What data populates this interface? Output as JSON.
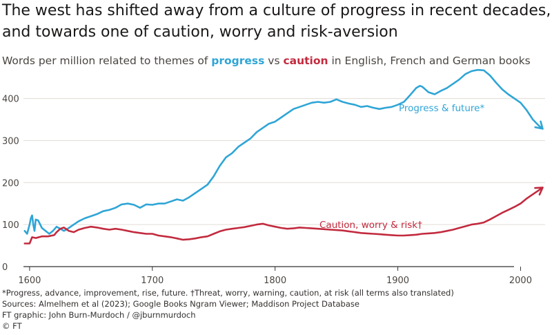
{
  "title_line1": "The west has shifted away from a culture of progress in recent decades,",
  "title_line2": "and towards one of caution, worry and risk-aversion",
  "subtitle": {
    "before": "Words per million related to themes of ",
    "progress_word": "progress",
    "middle": " vs ",
    "caution_word": "caution",
    "after": " in English, French and German books"
  },
  "footer": {
    "note": "*Progress, advance, improvement, rise, future. †Threat, worry, warning, caution, at risk (all terms also translated)",
    "sources": "Sources: Almelhem et al (2023); Google Books Ngram Viewer; Maddison Project Database",
    "credit": "FT graphic: John Burn-Murdoch / @jburnmurdoch",
    "copyright": "© FT"
  },
  "colors": {
    "progress": "#2fa5d6",
    "caution": "#c22a3e",
    "grid": "#e1dcd6",
    "axis": "#33302e"
  },
  "chart_data": {
    "type": "line",
    "xlim": [
      1595,
      2020
    ],
    "ylim": [
      0,
      470
    ],
    "x_ticks": [
      1600,
      1700,
      1800,
      1900,
      2000
    ],
    "y_ticks": [
      0,
      100,
      200,
      300,
      400
    ],
    "grid": "horizontal",
    "series": [
      {
        "name": "Progress & future*",
        "color": "#2fa5d6",
        "points": [
          [
            1596,
            85
          ],
          [
            1598,
            78
          ],
          [
            1600,
            100
          ],
          [
            1601,
            115
          ],
          [
            1602,
            122
          ],
          [
            1603,
            100
          ],
          [
            1604,
            85
          ],
          [
            1605,
            112
          ],
          [
            1607,
            110
          ],
          [
            1610,
            92
          ],
          [
            1613,
            85
          ],
          [
            1616,
            78
          ],
          [
            1619,
            85
          ],
          [
            1622,
            95
          ],
          [
            1625,
            90
          ],
          [
            1628,
            85
          ],
          [
            1632,
            92
          ],
          [
            1636,
            100
          ],
          [
            1640,
            108
          ],
          [
            1645,
            115
          ],
          [
            1650,
            120
          ],
          [
            1655,
            125
          ],
          [
            1660,
            132
          ],
          [
            1665,
            135
          ],
          [
            1670,
            140
          ],
          [
            1675,
            148
          ],
          [
            1680,
            150
          ],
          [
            1685,
            147
          ],
          [
            1690,
            140
          ],
          [
            1695,
            148
          ],
          [
            1700,
            147
          ],
          [
            1705,
            150
          ],
          [
            1710,
            150
          ],
          [
            1715,
            155
          ],
          [
            1720,
            160
          ],
          [
            1725,
            157
          ],
          [
            1730,
            165
          ],
          [
            1735,
            175
          ],
          [
            1740,
            185
          ],
          [
            1745,
            195
          ],
          [
            1750,
            215
          ],
          [
            1755,
            240
          ],
          [
            1760,
            260
          ],
          [
            1765,
            270
          ],
          [
            1770,
            285
          ],
          [
            1775,
            295
          ],
          [
            1780,
            305
          ],
          [
            1785,
            320
          ],
          [
            1790,
            330
          ],
          [
            1795,
            340
          ],
          [
            1800,
            345
          ],
          [
            1805,
            355
          ],
          [
            1810,
            365
          ],
          [
            1815,
            375
          ],
          [
            1820,
            380
          ],
          [
            1825,
            385
          ],
          [
            1830,
            390
          ],
          [
            1835,
            392
          ],
          [
            1840,
            390
          ],
          [
            1845,
            392
          ],
          [
            1850,
            398
          ],
          [
            1855,
            392
          ],
          [
            1860,
            388
          ],
          [
            1865,
            385
          ],
          [
            1870,
            380
          ],
          [
            1875,
            382
          ],
          [
            1880,
            378
          ],
          [
            1885,
            375
          ],
          [
            1890,
            378
          ],
          [
            1895,
            380
          ],
          [
            1900,
            385
          ],
          [
            1905,
            392
          ],
          [
            1910,
            408
          ],
          [
            1915,
            425
          ],
          [
            1918,
            430
          ],
          [
            1920,
            428
          ],
          [
            1925,
            415
          ],
          [
            1930,
            410
          ],
          [
            1935,
            418
          ],
          [
            1940,
            425
          ],
          [
            1945,
            435
          ],
          [
            1950,
            445
          ],
          [
            1955,
            458
          ],
          [
            1960,
            465
          ],
          [
            1965,
            468
          ],
          [
            1970,
            467
          ],
          [
            1975,
            455
          ],
          [
            1980,
            438
          ],
          [
            1985,
            422
          ],
          [
            1990,
            410
          ],
          [
            1995,
            400
          ],
          [
            2000,
            390
          ],
          [
            2005,
            372
          ],
          [
            2010,
            350
          ],
          [
            2015,
            335
          ],
          [
            2018,
            328
          ]
        ]
      },
      {
        "name": "Caution, worry & risk†",
        "color": "#c22a3e",
        "points": [
          [
            1596,
            55
          ],
          [
            1600,
            55
          ],
          [
            1602,
            70
          ],
          [
            1605,
            68
          ],
          [
            1610,
            72
          ],
          [
            1615,
            72
          ],
          [
            1620,
            75
          ],
          [
            1622,
            82
          ],
          [
            1625,
            90
          ],
          [
            1628,
            93
          ],
          [
            1632,
            85
          ],
          [
            1636,
            82
          ],
          [
            1640,
            88
          ],
          [
            1645,
            92
          ],
          [
            1650,
            95
          ],
          [
            1655,
            93
          ],
          [
            1660,
            90
          ],
          [
            1665,
            88
          ],
          [
            1670,
            90
          ],
          [
            1675,
            88
          ],
          [
            1680,
            85
          ],
          [
            1685,
            82
          ],
          [
            1690,
            80
          ],
          [
            1695,
            78
          ],
          [
            1700,
            78
          ],
          [
            1705,
            74
          ],
          [
            1710,
            72
          ],
          [
            1715,
            70
          ],
          [
            1720,
            67
          ],
          [
            1725,
            64
          ],
          [
            1730,
            65
          ],
          [
            1735,
            67
          ],
          [
            1740,
            70
          ],
          [
            1745,
            72
          ],
          [
            1750,
            78
          ],
          [
            1755,
            84
          ],
          [
            1760,
            88
          ],
          [
            1765,
            90
          ],
          [
            1770,
            92
          ],
          [
            1775,
            94
          ],
          [
            1780,
            97
          ],
          [
            1785,
            100
          ],
          [
            1790,
            102
          ],
          [
            1795,
            98
          ],
          [
            1800,
            95
          ],
          [
            1805,
            92
          ],
          [
            1810,
            90
          ],
          [
            1815,
            91
          ],
          [
            1820,
            93
          ],
          [
            1825,
            92
          ],
          [
            1830,
            91
          ],
          [
            1835,
            90
          ],
          [
            1840,
            89
          ],
          [
            1845,
            88
          ],
          [
            1850,
            87
          ],
          [
            1855,
            86
          ],
          [
            1860,
            84
          ],
          [
            1865,
            82
          ],
          [
            1870,
            80
          ],
          [
            1875,
            79
          ],
          [
            1880,
            78
          ],
          [
            1885,
            77
          ],
          [
            1890,
            76
          ],
          [
            1895,
            75
          ],
          [
            1900,
            74
          ],
          [
            1905,
            74
          ],
          [
            1910,
            75
          ],
          [
            1915,
            76
          ],
          [
            1920,
            78
          ],
          [
            1925,
            79
          ],
          [
            1930,
            80
          ],
          [
            1935,
            82
          ],
          [
            1940,
            85
          ],
          [
            1945,
            88
          ],
          [
            1950,
            92
          ],
          [
            1955,
            96
          ],
          [
            1960,
            100
          ],
          [
            1965,
            102
          ],
          [
            1970,
            105
          ],
          [
            1975,
            112
          ],
          [
            1980,
            120
          ],
          [
            1985,
            128
          ],
          [
            1990,
            135
          ],
          [
            1995,
            142
          ],
          [
            2000,
            150
          ],
          [
            2005,
            162
          ],
          [
            2010,
            172
          ],
          [
            2015,
            182
          ],
          [
            2018,
            188
          ]
        ]
      }
    ]
  }
}
